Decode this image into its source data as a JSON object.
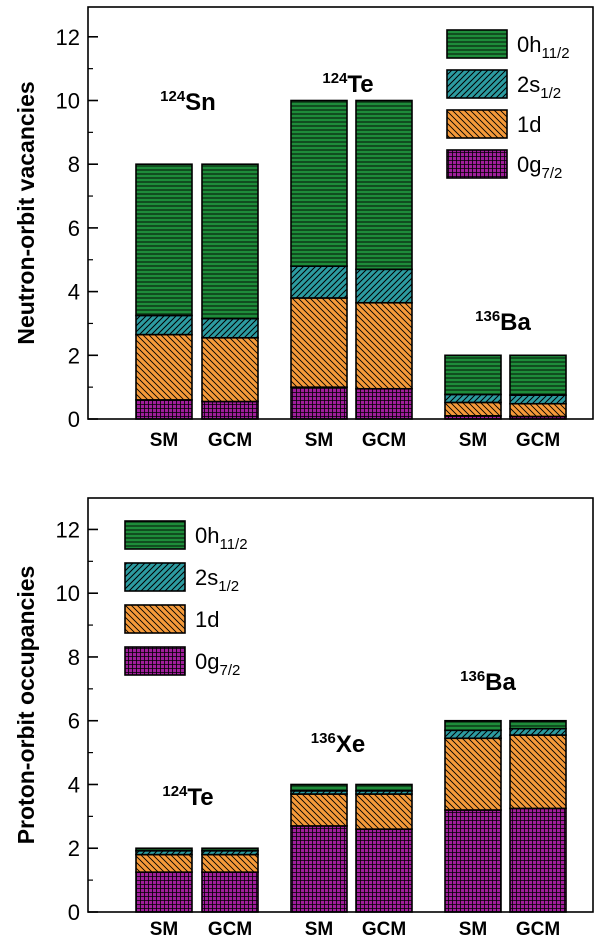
{
  "series_names": [
    "0g",
    "1d",
    "2s",
    "0h"
  ],
  "colors": {
    "0h": "#1e8c3a",
    "2s": "#2c9ba0",
    "1d": "#f59a3a",
    "0g": "#a01e9b"
  },
  "legend": [
    {
      "key": "0h",
      "base": "0h",
      "sub": "11/2"
    },
    {
      "key": "2s",
      "base": "2s",
      "sub": "1/2"
    },
    {
      "key": "1d",
      "base": "1d",
      "sub": ""
    },
    {
      "key": "0g",
      "base": "0g",
      "sub": "7/2"
    }
  ],
  "chart_data": [
    {
      "type": "bar",
      "stacked": true,
      "ylabel": "Neutron-orbit vacancies",
      "ylim": [
        0,
        13
      ],
      "yticks": [
        0,
        2,
        4,
        6,
        8,
        10,
        12
      ],
      "legend_position": "top-right",
      "groups": [
        {
          "nucleus": {
            "mass": "124",
            "symbol": "Sn"
          },
          "bars": [
            {
              "label": "SM",
              "values": {
                "0g": 0.6,
                "1d": 2.05,
                "2s": 0.6,
                "0h": 4.75
              }
            },
            {
              "label": "GCM",
              "values": {
                "0g": 0.55,
                "1d": 2.0,
                "2s": 0.6,
                "0h": 4.85
              }
            }
          ]
        },
        {
          "nucleus": {
            "mass": "124",
            "symbol": "Te"
          },
          "bars": [
            {
              "label": "SM",
              "values": {
                "0g": 1.0,
                "1d": 2.8,
                "2s": 1.0,
                "0h": 5.2
              }
            },
            {
              "label": "GCM",
              "values": {
                "0g": 0.95,
                "1d": 2.7,
                "2s": 1.05,
                "0h": 5.3
              }
            }
          ]
        },
        {
          "nucleus": {
            "mass": "136",
            "symbol": "Ba"
          },
          "bars": [
            {
              "label": "SM",
              "values": {
                "0g": 0.1,
                "1d": 0.42,
                "2s": 0.25,
                "0h": 1.23
              }
            },
            {
              "label": "GCM",
              "values": {
                "0g": 0.08,
                "1d": 0.4,
                "2s": 0.27,
                "0h": 1.25
              }
            }
          ]
        }
      ]
    },
    {
      "type": "bar",
      "stacked": true,
      "ylabel": "Proton-orbit occupancies",
      "ylim": [
        0,
        13
      ],
      "yticks": [
        0,
        2,
        4,
        6,
        8,
        10,
        12
      ],
      "legend_position": "top-left",
      "groups": [
        {
          "nucleus": {
            "mass": "124",
            "symbol": "Te"
          },
          "bars": [
            {
              "label": "SM",
              "values": {
                "0g": 1.25,
                "1d": 0.55,
                "2s": 0.12,
                "0h": 0.08
              }
            },
            {
              "label": "GCM",
              "values": {
                "0g": 1.25,
                "1d": 0.55,
                "2s": 0.12,
                "0h": 0.08
              }
            }
          ]
        },
        {
          "nucleus": {
            "mass": "136",
            "symbol": "Xe"
          },
          "bars": [
            {
              "label": "SM",
              "values": {
                "0g": 2.7,
                "1d": 1.0,
                "2s": 0.1,
                "0h": 0.2
              }
            },
            {
              "label": "GCM",
              "values": {
                "0g": 2.6,
                "1d": 1.1,
                "2s": 0.1,
                "0h": 0.2
              }
            }
          ]
        },
        {
          "nucleus": {
            "mass": "136",
            "symbol": "Ba"
          },
          "bars": [
            {
              "label": "SM",
              "values": {
                "0g": 3.2,
                "1d": 2.25,
                "2s": 0.25,
                "0h": 0.3
              }
            },
            {
              "label": "GCM",
              "values": {
                "0g": 3.25,
                "1d": 2.3,
                "2s": 0.2,
                "0h": 0.25
              }
            }
          ]
        }
      ]
    }
  ]
}
